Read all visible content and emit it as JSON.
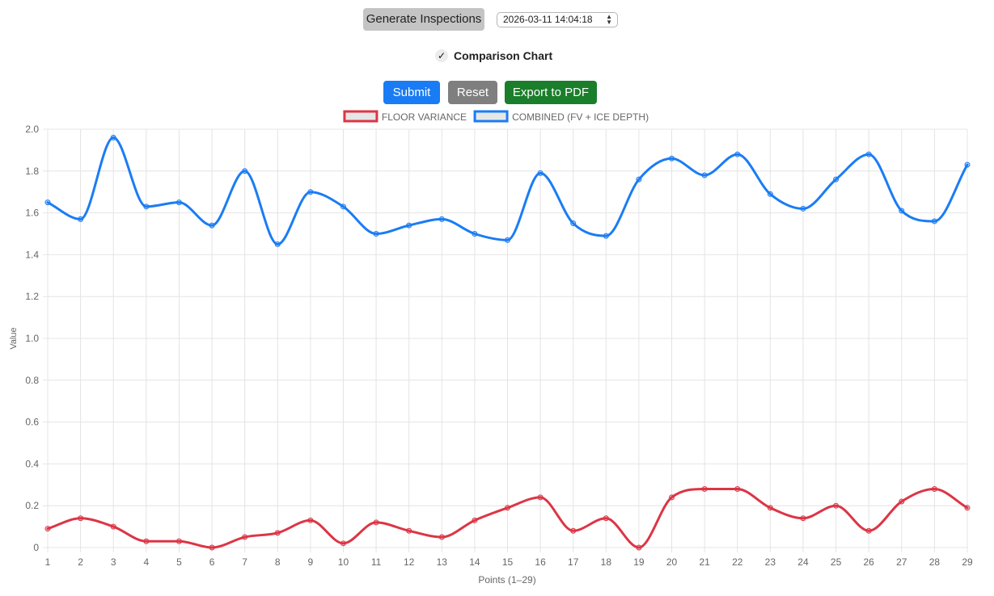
{
  "controls": {
    "generate_label": "Generate Inspections",
    "date_value": "2026-03-11 14:04:18",
    "comparison_label": "Comparison Chart",
    "comparison_checked": true,
    "submit_label": "Submit",
    "reset_label": "Reset",
    "export_label": "Export to PDF"
  },
  "colors": {
    "submit": "#1a7cf4",
    "reset": "#7f7f7f",
    "export": "#1a7e2b",
    "floor_variance": "#dc3545",
    "combined": "#1a7cf4"
  },
  "icons": {
    "check": "check-icon",
    "select_arrows": "chevron-up-down-icon"
  },
  "chart_data": {
    "type": "line",
    "xlabel": "Points (1–29)",
    "ylabel": "Value",
    "ylim": [
      0,
      2.0
    ],
    "y_ticks": [
      "0",
      "0.2",
      "0.4",
      "0.6",
      "0.8",
      "1.0",
      "1.2",
      "1.4",
      "1.6",
      "1.8",
      "2.0"
    ],
    "categories": [
      "1",
      "2",
      "3",
      "4",
      "5",
      "6",
      "7",
      "8",
      "9",
      "10",
      "11",
      "12",
      "13",
      "14",
      "15",
      "16",
      "17",
      "18",
      "19",
      "20",
      "21",
      "22",
      "23",
      "24",
      "25",
      "26",
      "27",
      "28",
      "29"
    ],
    "grid": true,
    "legend_position": "top-center",
    "series": [
      {
        "name": "FLOOR VARIANCE",
        "color": "#dc3545",
        "values": [
          0.09,
          0.14,
          0.1,
          0.03,
          0.03,
          0.0,
          0.05,
          0.07,
          0.13,
          0.02,
          0.12,
          0.08,
          0.05,
          0.13,
          0.19,
          0.24,
          0.08,
          0.14,
          0.0,
          0.24,
          0.28,
          0.28,
          0.19,
          0.14,
          0.2,
          0.08,
          0.22,
          0.28,
          0.19
        ]
      },
      {
        "name": "COMBINED (FV + ICE DEPTH)",
        "color": "#1a7cf4",
        "values": [
          1.65,
          1.57,
          1.96,
          1.63,
          1.65,
          1.54,
          1.8,
          1.45,
          1.7,
          1.63,
          1.5,
          1.54,
          1.57,
          1.5,
          1.47,
          1.79,
          1.55,
          1.49,
          1.76,
          1.86,
          1.78,
          1.88,
          1.69,
          1.62,
          1.76,
          1.88,
          1.61,
          1.56,
          1.83
        ]
      }
    ]
  }
}
